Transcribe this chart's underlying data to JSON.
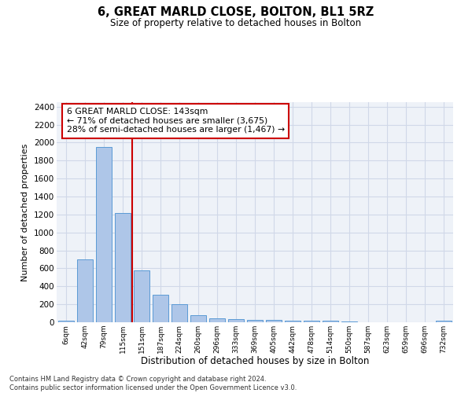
{
  "title": "6, GREAT MARLD CLOSE, BOLTON, BL1 5RZ",
  "subtitle": "Size of property relative to detached houses in Bolton",
  "xlabel": "Distribution of detached houses by size in Bolton",
  "ylabel": "Number of detached properties",
  "footer_line1": "Contains HM Land Registry data © Crown copyright and database right 2024.",
  "footer_line2": "Contains public sector information licensed under the Open Government Licence v3.0.",
  "categories": [
    "6sqm",
    "42sqm",
    "79sqm",
    "115sqm",
    "151sqm",
    "187sqm",
    "224sqm",
    "260sqm",
    "296sqm",
    "333sqm",
    "369sqm",
    "405sqm",
    "442sqm",
    "478sqm",
    "514sqm",
    "550sqm",
    "587sqm",
    "623sqm",
    "659sqm",
    "696sqm",
    "732sqm"
  ],
  "values": [
    15,
    700,
    1950,
    1220,
    575,
    305,
    200,
    80,
    48,
    38,
    30,
    28,
    20,
    15,
    18,
    5,
    3,
    3,
    2,
    2,
    15
  ],
  "bar_color": "#aec6e8",
  "bar_edge_color": "#5b9bd5",
  "grid_color": "#d0d8e8",
  "background_color": "#eef2f8",
  "vline_x_idx": 3,
  "vline_color": "#cc0000",
  "annotation_line1": "6 GREAT MARLD CLOSE: 143sqm",
  "annotation_line2": "← 71% of detached houses are smaller (3,675)",
  "annotation_line3": "28% of semi-detached houses are larger (1,467) →",
  "annotation_box_color": "#cc0000",
  "ylim": [
    0,
    2450
  ],
  "yticks": [
    0,
    200,
    400,
    600,
    800,
    1000,
    1200,
    1400,
    1600,
    1800,
    2000,
    2200,
    2400
  ]
}
